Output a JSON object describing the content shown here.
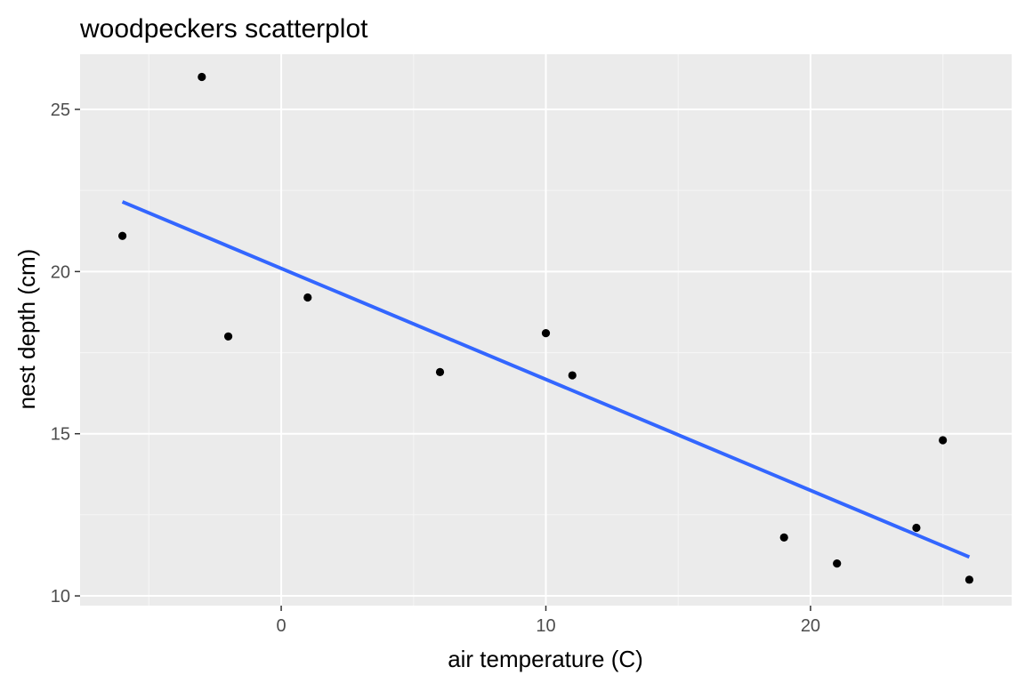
{
  "chart_data": {
    "type": "scatter",
    "title": "woodpeckers scatterplot",
    "xlabel": "air temperature (C)",
    "ylabel": "nest depth (cm)",
    "xlim": [
      -7.6,
      27.6
    ],
    "ylim": [
      9.7,
      26.7
    ],
    "x_ticks": [
      0,
      10,
      20
    ],
    "x_tick_labels": [
      "0",
      "10",
      "20"
    ],
    "y_ticks": [
      10,
      15,
      20,
      25
    ],
    "y_tick_labels": [
      "10",
      "15",
      "20",
      "25"
    ],
    "grid": true,
    "legend": "none",
    "points": {
      "x": [
        -6,
        -3,
        -2,
        1,
        6,
        10,
        11,
        19,
        21,
        24,
        25,
        26
      ],
      "y": [
        21.1,
        26.0,
        18.0,
        19.2,
        16.9,
        18.1,
        16.8,
        11.8,
        11.0,
        12.1,
        14.8,
        10.5
      ]
    },
    "trend_line": {
      "x": [
        -6,
        26
      ],
      "y": [
        22.15,
        11.2
      ]
    },
    "colors": {
      "panel_background": "#ebebeb",
      "grid_major": "#ffffff",
      "grid_minor": "#f5f5f5",
      "point": "#000000",
      "trend_line": "#3366ff",
      "tick_mark": "#333333"
    }
  }
}
